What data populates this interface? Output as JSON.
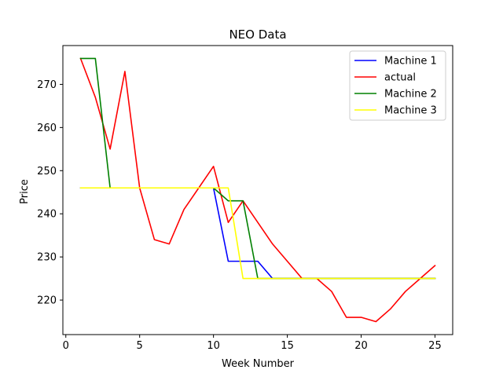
{
  "chart_data": {
    "type": "line",
    "title": "NEO Data",
    "xlabel": "Week Number",
    "ylabel": "Price",
    "xlim": [
      -0.2,
      26.2
    ],
    "ylim": [
      212.0,
      279.0
    ],
    "xticks": [
      0,
      5,
      10,
      15,
      20,
      25
    ],
    "yticks": [
      220,
      230,
      240,
      250,
      260,
      270
    ],
    "grid": false,
    "legend_position": "top-right",
    "x": [
      1,
      2,
      3,
      4,
      5,
      6,
      7,
      8,
      9,
      10,
      11,
      12,
      13,
      14,
      15,
      16,
      17,
      18,
      19,
      20,
      21,
      22,
      23,
      24,
      25
    ],
    "series": [
      {
        "name": "Machine 1",
        "color": "#0000ff",
        "values": [
          246,
          246,
          246,
          246,
          246,
          246,
          246,
          246,
          246,
          246,
          229,
          229,
          229,
          225,
          225,
          225,
          225,
          225,
          225,
          225,
          225,
          225,
          225,
          225,
          225
        ]
      },
      {
        "name": "actual",
        "color": "#ff0000",
        "values": [
          276,
          267,
          255,
          273,
          246,
          234,
          233,
          241,
          246,
          251,
          238,
          243,
          238,
          233,
          229,
          225,
          225,
          222,
          216,
          216,
          215,
          218,
          222,
          225,
          228
        ]
      },
      {
        "name": "Machine 2",
        "color": "#008000",
        "values": [
          276,
          276,
          246,
          246,
          246,
          246,
          246,
          246,
          246,
          246,
          243,
          243,
          225,
          225,
          225,
          225,
          225,
          225,
          225,
          225,
          225,
          225,
          225,
          225,
          225
        ]
      },
      {
        "name": "Machine 3",
        "color": "#ffff00",
        "values": [
          246,
          246,
          246,
          246,
          246,
          246,
          246,
          246,
          246,
          246,
          246,
          225,
          225,
          225,
          225,
          225,
          225,
          225,
          225,
          225,
          225,
          225,
          225,
          225,
          225
        ]
      }
    ]
  }
}
